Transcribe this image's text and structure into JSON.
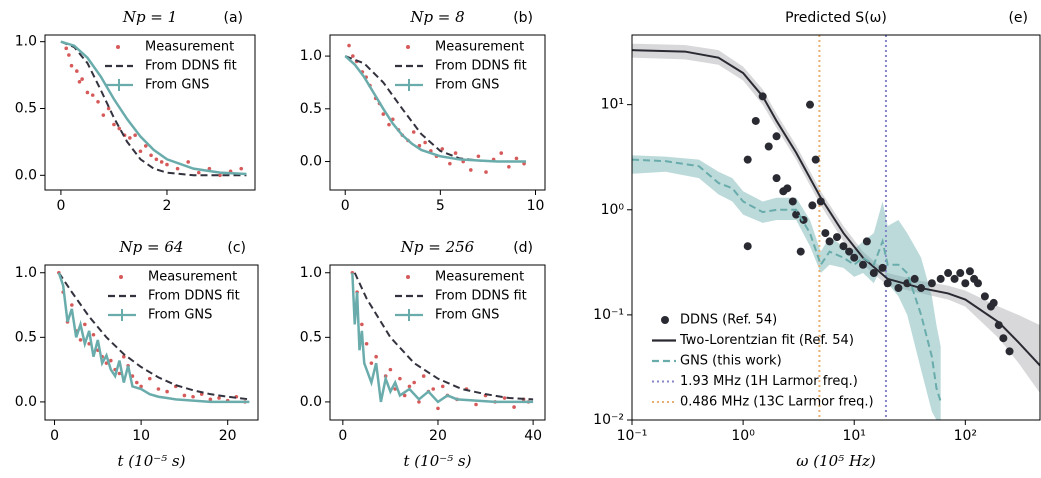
{
  "chart_data": [
    {
      "type": "line",
      "title": "Np = 1",
      "annotation": "(a)",
      "legend": "upper right",
      "xlim": [
        -0.3,
        3.66
      ],
      "xticks": [
        0,
        2
      ],
      "ylim": [
        -0.11,
        1.05
      ],
      "yticks": [
        {
          "value": 0,
          "label": "0.0"
        },
        0.5,
        {
          "value": 1,
          "label": "1.0"
        }
      ],
      "series": [
        {
          "name": "Measurement",
          "color": "#d65a5a",
          "marker": "dot",
          "x": [
            0.1,
            0.15,
            0.2,
            0.3,
            0.35,
            0.4,
            0.5,
            0.6,
            0.7,
            0.8,
            0.9,
            1.0,
            1.1,
            1.2,
            1.3,
            1.4,
            1.5,
            1.6,
            1.7,
            1.8,
            1.9,
            2.0,
            2.2,
            2.4,
            2.6,
            2.8,
            3.0,
            3.2,
            3.4
          ],
          "values": [
            0.95,
            0.9,
            0.82,
            0.78,
            0.7,
            0.72,
            0.62,
            0.6,
            0.55,
            0.45,
            0.5,
            0.38,
            0.35,
            0.3,
            0.28,
            0.3,
            0.18,
            0.22,
            0.15,
            0.12,
            0.1,
            0.08,
            0.05,
            0.1,
            0.02,
            0.05,
            0.0,
            0.03,
            0.05
          ]
        },
        {
          "name": "From DDNS fit",
          "color": "#33333f",
          "dash": true,
          "x": [
            0,
            0.25,
            0.5,
            0.75,
            1.0,
            1.25,
            1.5,
            1.75,
            2.0,
            2.5,
            3.0,
            3.5
          ],
          "values": [
            1.0,
            0.96,
            0.84,
            0.64,
            0.43,
            0.25,
            0.12,
            0.05,
            0.02,
            0.0,
            0.0,
            0.0
          ]
        },
        {
          "name": "From GNS",
          "color": "#6aacac",
          "errorbar": true,
          "x": [
            0,
            0.25,
            0.5,
            0.75,
            1.0,
            1.25,
            1.5,
            1.75,
            2.0,
            2.5,
            3.0,
            3.5
          ],
          "values": [
            1.0,
            0.97,
            0.88,
            0.74,
            0.57,
            0.42,
            0.29,
            0.19,
            0.12,
            0.05,
            0.02,
            0.01
          ]
        }
      ]
    },
    {
      "type": "line",
      "title": "Np = 8",
      "annotation": "(b)",
      "legend": "upper right",
      "xlim": [
        -0.8,
        10.5
      ],
      "xticks": [
        0,
        5,
        10
      ],
      "ylim": [
        -0.27,
        1.2
      ],
      "yticks": [
        {
          "value": 0,
          "label": "0.0"
        },
        0.5,
        {
          "value": 1,
          "label": "1.0"
        }
      ],
      "series": [
        {
          "name": "Measurement",
          "color": "#d65a5a",
          "marker": "dot",
          "x": [
            0.2,
            0.4,
            0.6,
            0.9,
            1.1,
            1.3,
            1.6,
            1.8,
            2.0,
            2.3,
            2.5,
            2.8,
            3.0,
            3.3,
            3.6,
            3.9,
            4.2,
            4.5,
            4.8,
            5.1,
            5.5,
            5.8,
            6.2,
            6.6,
            7.0,
            7.4,
            7.8,
            8.2,
            8.6,
            9.0,
            9.4
          ],
          "values": [
            1.1,
            1.0,
            0.95,
            0.85,
            0.8,
            0.72,
            0.6,
            0.55,
            0.45,
            0.35,
            0.4,
            0.3,
            0.25,
            0.2,
            0.28,
            0.15,
            0.18,
            0.1,
            0.05,
            0.12,
            -0.02,
            0.08,
            0.0,
            -0.08,
            0.05,
            -0.1,
            0.02,
            0.08,
            -0.05,
            0.03,
            -0.02
          ]
        },
        {
          "name": "From DDNS fit",
          "color": "#33333f",
          "dash": true,
          "x": [
            0,
            1,
            2,
            3,
            4,
            5,
            6,
            7,
            8,
            9.5
          ],
          "values": [
            1.0,
            0.93,
            0.75,
            0.5,
            0.26,
            0.1,
            0.03,
            0.01,
            0.0,
            0.0
          ]
        },
        {
          "name": "From GNS",
          "color": "#6aacac",
          "errorbar": true,
          "x": [
            0,
            0.5,
            1,
            1.5,
            2,
            2.5,
            3,
            3.5,
            4,
            5,
            6,
            7,
            8,
            9.5
          ],
          "values": [
            1.0,
            0.92,
            0.8,
            0.65,
            0.5,
            0.36,
            0.25,
            0.17,
            0.11,
            0.05,
            0.02,
            0.01,
            0.0,
            0.0
          ]
        }
      ]
    },
    {
      "type": "line",
      "title": "Np = 64",
      "annotation": "(c)",
      "legend": "upper right",
      "xlabel": "t (10⁻⁵ s)",
      "xlim": [
        -1.1,
        23.5
      ],
      "xticks": [
        0,
        10,
        20
      ],
      "ylim": [
        -0.14,
        1.06
      ],
      "yticks": [
        {
          "value": 0,
          "label": "0.0"
        },
        0.5,
        {
          "value": 1,
          "label": "1.0"
        }
      ],
      "series": [
        {
          "name": "Measurement",
          "color": "#d65a5a",
          "marker": "dot",
          "x": [
            0.5,
            1.0,
            1.5,
            2.0,
            2.5,
            3.0,
            3.5,
            4.0,
            4.5,
            5.0,
            5.5,
            6.0,
            6.5,
            7.0,
            7.5,
            8.0,
            8.5,
            9.0,
            9.5,
            10,
            11,
            12,
            13,
            14,
            15,
            16,
            17,
            18,
            19,
            20,
            21,
            22
          ],
          "values": [
            1.0,
            0.85,
            0.62,
            0.75,
            0.55,
            0.48,
            0.6,
            0.45,
            0.52,
            0.4,
            0.35,
            0.3,
            0.32,
            0.25,
            0.22,
            0.35,
            0.28,
            0.2,
            0.15,
            0.12,
            0.18,
            0.1,
            0.08,
            0.12,
            0.05,
            0.04,
            0.06,
            0.02,
            0.03,
            0.01,
            0.04,
            0.0
          ]
        },
        {
          "name": "From DDNS fit",
          "color": "#33333f",
          "dash": true,
          "x": [
            0.5,
            2,
            4,
            6,
            8,
            10,
            12,
            14,
            16,
            18,
            20,
            22.5
          ],
          "values": [
            1.0,
            0.85,
            0.66,
            0.5,
            0.37,
            0.27,
            0.19,
            0.13,
            0.09,
            0.06,
            0.04,
            0.02
          ]
        },
        {
          "name": "From GNS",
          "color": "#6aacac",
          "errorbar": true,
          "x": [
            0.5,
            1,
            1.5,
            2,
            2.5,
            3,
            3.5,
            4,
            4.5,
            5,
            5.5,
            6,
            6.5,
            7,
            7.5,
            8,
            8.5,
            9,
            10,
            11,
            12,
            13,
            14,
            16,
            18,
            20,
            22.5
          ],
          "values": [
            1.0,
            0.9,
            0.62,
            0.72,
            0.5,
            0.6,
            0.45,
            0.55,
            0.35,
            0.48,
            0.3,
            0.36,
            0.25,
            0.2,
            0.32,
            0.15,
            0.28,
            0.12,
            0.1,
            0.06,
            0.04,
            0.03,
            0.02,
            0.01,
            0.0,
            0.0,
            0.0
          ]
        }
      ]
    },
    {
      "type": "line",
      "title": "Np = 256",
      "annotation": "(d)",
      "legend": "upper right",
      "xlabel": "t (10⁻⁵ s)",
      "xlim": [
        -2.7,
        42.5
      ],
      "xticks": [
        0,
        20,
        40
      ],
      "ylim": [
        -0.14,
        1.06
      ],
      "yticks": [
        {
          "value": 0,
          "label": "0.0"
        },
        0.5,
        {
          "value": 1,
          "label": "1.0"
        }
      ],
      "series": [
        {
          "name": "Measurement",
          "color": "#d65a5a",
          "marker": "dot",
          "x": [
            2,
            3,
            4,
            5,
            6,
            7,
            8,
            9,
            10,
            11,
            12,
            13,
            14,
            15,
            16,
            17,
            18,
            19,
            20,
            21,
            22,
            24,
            26,
            28,
            30,
            32,
            34,
            36,
            38,
            39
          ],
          "values": [
            1.0,
            0.85,
            0.6,
            0.45,
            0.3,
            0.35,
            0.05,
            0.2,
            0.25,
            0.1,
            0.18,
            0.05,
            0.12,
            0.15,
            0.0,
            0.2,
            0.08,
            0.1,
            -0.05,
            0.12,
            0.05,
            0.02,
            0.1,
            -0.02,
            0.05,
            0.0,
            0.03,
            -0.04,
            0.02,
            0.0
          ]
        },
        {
          "name": "From DDNS fit",
          "color": "#33333f",
          "dash": true,
          "x": [
            2.5,
            5,
            10,
            15,
            20,
            25,
            30,
            35,
            40
          ],
          "values": [
            1.0,
            0.8,
            0.5,
            0.3,
            0.18,
            0.1,
            0.06,
            0.03,
            0.02
          ]
        },
        {
          "name": "From GNS",
          "color": "#6aacac",
          "errorbar": true,
          "x": [
            2,
            2.5,
            3,
            3.5,
            4,
            4.5,
            5,
            6,
            7,
            8,
            9,
            10,
            11,
            12,
            14,
            16,
            18,
            20,
            22,
            24,
            28,
            32,
            36,
            40
          ],
          "values": [
            1.0,
            0.6,
            0.85,
            0.4,
            0.55,
            0.3,
            0.25,
            0.15,
            0.3,
            0.0,
            0.18,
            0.08,
            0.15,
            0.05,
            0.1,
            0.02,
            0.08,
            0.0,
            0.05,
            0.02,
            0.01,
            0.0,
            0.0,
            0.0
          ]
        }
      ]
    },
    {
      "type": "line",
      "title": "Predicted S(ω)",
      "annotation": "(e)",
      "legend": "lower left",
      "xlabel": "ω (10⁵ Hz)",
      "xscale": "log",
      "yscale": "log",
      "xlim": [
        0.1,
        470
      ],
      "xticks": [
        {
          "value": 0.1,
          "label": "10⁻¹"
        },
        {
          "value": 1,
          "label": "10⁰"
        },
        {
          "value": 10,
          "label": "10¹"
        },
        {
          "value": 100,
          "label": "10²"
        }
      ],
      "ylim": [
        0.01,
        46
      ],
      "yticks": [
        {
          "value": 0.01,
          "label": "10⁻²"
        },
        {
          "value": 0.1,
          "label": "10⁻¹"
        },
        {
          "value": 1,
          "label": "10⁰"
        },
        {
          "value": 10,
          "label": "10¹"
        }
      ],
      "series": [
        {
          "name": "DDNS (Ref. 54)",
          "color": "#2a2a33",
          "marker": "big",
          "x": [
            1.1,
            1.1,
            1.3,
            1.5,
            1.7,
            2.0,
            2.0,
            2.3,
            2.5,
            2.8,
            3.0,
            3.3,
            3.5,
            4.0,
            4.2,
            4.5,
            5.0,
            5.5,
            6,
            7,
            8,
            9,
            10,
            12,
            13,
            15,
            18,
            20,
            25,
            30,
            35,
            40,
            50,
            60,
            70,
            80,
            90,
            100,
            110,
            120,
            130,
            150,
            170,
            180,
            200,
            220,
            250
          ],
          "values": [
            0.45,
            3.0,
            7,
            12,
            4.0,
            2.0,
            5,
            1.5,
            1.6,
            1.2,
            0.9,
            0.4,
            0.8,
            10,
            1.1,
            3.0,
            1.2,
            0.6,
            0.5,
            0.55,
            0.45,
            0.4,
            0.35,
            0.3,
            0.5,
            0.25,
            0.28,
            0.2,
            0.18,
            0.2,
            0.22,
            0.18,
            0.2,
            0.22,
            0.25,
            0.22,
            0.25,
            0.2,
            0.26,
            0.22,
            0.2,
            0.15,
            0.12,
            0.13,
            0.08,
            0.06,
            0.045
          ]
        },
        {
          "name": "Two-Lorentzian fit (Ref. 54)",
          "color": "#2a2a33",
          "x": [
            0.1,
            0.3,
            0.6,
            1,
            1.5,
            2,
            3,
            5,
            8,
            12,
            20,
            40,
            70,
            100,
            200,
            300,
            470
          ],
          "values": [
            33,
            32,
            28,
            20,
            12,
            7,
            3.5,
            1.3,
            0.6,
            0.35,
            0.22,
            0.18,
            0.16,
            0.14,
            0.085,
            0.055,
            0.033
          ],
          "lower": [
            28,
            27,
            24,
            17,
            10,
            6,
            3,
            1.1,
            0.5,
            0.3,
            0.19,
            0.16,
            0.14,
            0.12,
            0.06,
            0.035,
            0.018
          ],
          "upper": [
            38,
            37,
            33,
            23,
            14,
            8.2,
            4.1,
            1.5,
            0.7,
            0.4,
            0.25,
            0.21,
            0.19,
            0.17,
            0.12,
            0.1,
            0.08
          ],
          "band_color": "#a8a8ae"
        },
        {
          "name": "GNS (this work)",
          "color": "#6aacac",
          "dash": true,
          "x": [
            0.1,
            0.2,
            0.4,
            0.6,
            0.8,
            1.0,
            1.5,
            2.0,
            3.0,
            4.0,
            5.0,
            6.0,
            8.0,
            10,
            12,
            15,
            18,
            20,
            25,
            30,
            40,
            50,
            55,
            60
          ],
          "values": [
            3.0,
            2.9,
            2.6,
            1.8,
            1.6,
            1.2,
            0.95,
            1.0,
            1.0,
            0.6,
            0.3,
            0.4,
            0.35,
            0.3,
            0.35,
            0.3,
            0.5,
            0.3,
            0.3,
            0.25,
            0.1,
            0.04,
            0.02,
            0.015
          ],
          "lower": [
            2.2,
            2.3,
            2.0,
            1.4,
            1.2,
            0.9,
            0.75,
            0.8,
            0.8,
            0.45,
            0.25,
            0.3,
            0.28,
            0.23,
            0.25,
            0.2,
            0.3,
            0.2,
            0.15,
            0.1,
            0.03,
            0.012,
            0.01,
            0.01
          ],
          "upper": [
            3.3,
            3.2,
            3.0,
            2.3,
            2.0,
            1.5,
            1.2,
            1.3,
            1.3,
            0.8,
            0.4,
            0.55,
            0.45,
            0.42,
            0.5,
            0.6,
            1.2,
            0.7,
            0.8,
            0.6,
            0.35,
            0.15,
            0.08,
            0.05
          ],
          "band_color": "#6aacac"
        }
      ],
      "vlines": [
        {
          "name": "1.93 MHz (1H Larmor freq.)",
          "x": 19.3,
          "color": "#8585c8"
        },
        {
          "name": "0.486 MHz (13C Larmor freq.)",
          "x": 4.86,
          "color": "#e8b070"
        }
      ]
    }
  ]
}
